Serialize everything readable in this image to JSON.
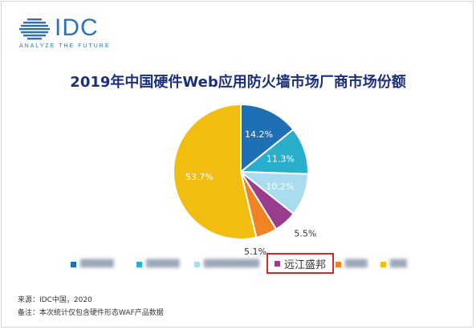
{
  "brand": {
    "name": "IDC",
    "tagline": "ANALYZE THE FUTURE",
    "color": "#2b72b8"
  },
  "chart_data": {
    "type": "pie",
    "title": "2019年中国硬件Web应用防火墙市场厂商市场份额",
    "slices": [
      {
        "label": "",
        "value": 14.2,
        "display": "14.2%",
        "color": "#1f6fb5",
        "label_style": "inside"
      },
      {
        "label": "",
        "value": 11.3,
        "display": "11.3%",
        "color": "#29aecb",
        "label_style": "inside"
      },
      {
        "label": "",
        "value": 10.2,
        "display": "10.2%",
        "color": "#a9dcee",
        "label_style": "inside"
      },
      {
        "label": "远江盛邦",
        "value": 5.5,
        "display": "5.5%",
        "color": "#9b3d8f",
        "label_style": "outside"
      },
      {
        "label": "",
        "value": 5.1,
        "display": "5.1%",
        "color": "#f08424",
        "label_style": "outside"
      },
      {
        "label": "",
        "value": 53.7,
        "display": "53.7%",
        "color": "#f2bd11",
        "label_style": "inside"
      }
    ],
    "legend_placement": "bottom",
    "highlighted_legend_item": "远江盛邦"
  },
  "footer": {
    "source": "来源：IDC中国，2020",
    "note": "备注：本次统计仅包含硬件形态WAF产品数据"
  }
}
